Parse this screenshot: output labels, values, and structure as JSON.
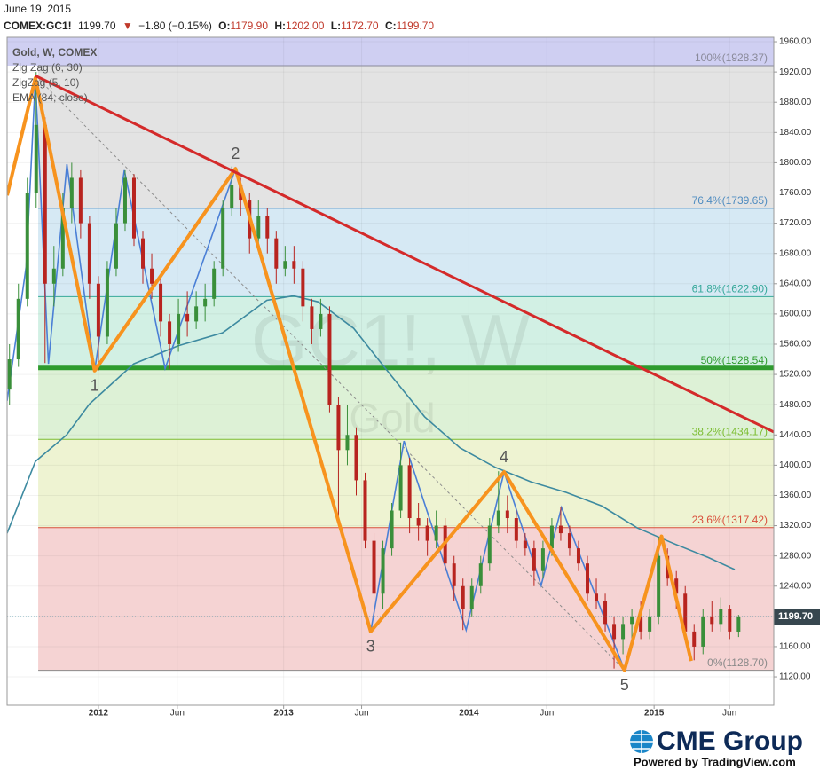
{
  "header": {
    "date": "June 19, 2015",
    "symbol": "COMEX:GC1!",
    "last": "1199.70",
    "change_arrow": "▼",
    "change": "−1.80 (−0.15%)",
    "open_label": "O:",
    "open": "1179.90",
    "high_label": "H:",
    "high": "1202.00",
    "low_label": "L:",
    "low": "1172.70",
    "close_label": "C:",
    "close": "1199.70"
  },
  "footer": {
    "brand": "CME Group",
    "powered": "Powered by TradingView.com"
  },
  "chart_data": {
    "type": "candlestick",
    "legend": [
      "Gold, W, COMEX",
      "Zig Zag (6, 30)",
      "ZigZag (5, 10)",
      "EMA (84, close)"
    ],
    "watermark": "GC1!, W",
    "watermark_sub": "Gold",
    "xlim": [
      2011.507,
      2015.646
    ],
    "ylim": [
      1082.5,
      1965.9
    ],
    "xticks": [
      {
        "value": 2012,
        "label": "2012"
      },
      {
        "value": 2012.426,
        "label": "Jun"
      },
      {
        "value": 2013,
        "label": "2013"
      },
      {
        "value": 2013.421,
        "label": "Jun"
      },
      {
        "value": 2014,
        "label": "2014"
      },
      {
        "value": 2014.421,
        "label": "Jun"
      },
      {
        "value": 2015,
        "label": "2015"
      },
      {
        "value": 2015.407,
        "label": "Jun"
      }
    ],
    "yticks": [
      {
        "value": 1120,
        "label": "1120.00"
      },
      {
        "value": 1160,
        "label": "1160.00"
      },
      {
        "value": 1200,
        "label": "1200.00"
      },
      {
        "value": 1240,
        "label": "1240.00"
      },
      {
        "value": 1280,
        "label": "1280.00"
      },
      {
        "value": 1320,
        "label": "1320.00"
      },
      {
        "value": 1360,
        "label": "1360.00"
      },
      {
        "value": 1400,
        "label": "1400.00"
      },
      {
        "value": 1440,
        "label": "1440.00"
      },
      {
        "value": 1480,
        "label": "1480.00"
      },
      {
        "value": 1520,
        "label": "1520.00"
      },
      {
        "value": 1560,
        "label": "1560.00"
      },
      {
        "value": 1600,
        "label": "1600.00"
      },
      {
        "value": 1640,
        "label": "1640.00"
      },
      {
        "value": 1680,
        "label": "1680.00"
      },
      {
        "value": 1720,
        "label": "1720.00"
      },
      {
        "value": 1760,
        "label": "1760.00"
      },
      {
        "value": 1800,
        "label": "1800.00"
      },
      {
        "value": 1840,
        "label": "1840.00"
      },
      {
        "value": 1880,
        "label": "1880.00"
      },
      {
        "value": 1920,
        "label": "1920.00"
      },
      {
        "value": 1960,
        "label": "1960.00"
      }
    ],
    "up_color": "#3a8f3a",
    "down_color": "#b8241f",
    "candles": {
      "x": [
        2011.52,
        2011.568,
        2011.616,
        2011.664,
        2011.712,
        2011.76,
        2011.808,
        2011.856,
        2011.904,
        2011.952,
        2012.0,
        2012.048,
        2012.096,
        2012.144,
        2012.192,
        2012.24,
        2012.288,
        2012.336,
        2012.384,
        2012.432,
        2012.48,
        2012.528,
        2012.576,
        2012.624,
        2012.672,
        2012.72,
        2012.768,
        2012.816,
        2012.864,
        2012.912,
        2012.96,
        2013.008,
        2013.056,
        2013.104,
        2013.152,
        2013.2,
        2013.248,
        2013.296,
        2013.344,
        2013.392,
        2013.44,
        2013.488,
        2013.536,
        2013.584,
        2013.632,
        2013.68,
        2013.728,
        2013.776,
        2013.824,
        2013.872,
        2013.92,
        2013.968,
        2014.016,
        2014.064,
        2014.112,
        2014.16,
        2014.208,
        2014.256,
        2014.304,
        2014.352,
        2014.4,
        2014.448,
        2014.496,
        2014.544,
        2014.592,
        2014.64,
        2014.688,
        2014.736,
        2014.784,
        2014.832,
        2014.88,
        2014.928,
        2014.976,
        2015.024,
        2015.072,
        2015.12,
        2015.168,
        2015.216,
        2015.264,
        2015.312,
        2015.36,
        2015.408,
        2015.456
      ],
      "open": [
        1500,
        1540,
        1620,
        1760,
        1850,
        1640,
        1660,
        1740,
        1780,
        1720,
        1640,
        1570,
        1660,
        1720,
        1780,
        1700,
        1660,
        1640,
        1590,
        1560,
        1600,
        1590,
        1610,
        1620,
        1660,
        1740,
        1770,
        1750,
        1700,
        1730,
        1700,
        1660,
        1670,
        1660,
        1610,
        1580,
        1600,
        1480,
        1420,
        1440,
        1380,
        1300,
        1230,
        1290,
        1340,
        1400,
        1330,
        1320,
        1300,
        1320,
        1270,
        1240,
        1210,
        1240,
        1270,
        1320,
        1340,
        1330,
        1300,
        1290,
        1260,
        1290,
        1320,
        1310,
        1290,
        1270,
        1230,
        1220,
        1190,
        1170,
        1190,
        1200,
        1180,
        1200,
        1280,
        1250,
        1230,
        1180,
        1160,
        1200,
        1190,
        1210,
        1179.9
      ],
      "high": [
        1560,
        1640,
        1780,
        1920,
        1860,
        1690,
        1760,
        1800,
        1790,
        1730,
        1650,
        1670,
        1740,
        1790,
        1785,
        1710,
        1680,
        1650,
        1600,
        1620,
        1630,
        1630,
        1640,
        1670,
        1750,
        1795,
        1780,
        1760,
        1750,
        1740,
        1710,
        1690,
        1690,
        1670,
        1620,
        1620,
        1610,
        1490,
        1480,
        1450,
        1390,
        1310,
        1300,
        1350,
        1430,
        1410,
        1350,
        1330,
        1340,
        1330,
        1280,
        1250,
        1250,
        1280,
        1330,
        1392,
        1360,
        1340,
        1310,
        1300,
        1300,
        1330,
        1345,
        1320,
        1300,
        1280,
        1250,
        1230,
        1200,
        1200,
        1210,
        1220,
        1210,
        1305,
        1290,
        1260,
        1240,
        1190,
        1210,
        1220,
        1225,
        1215,
        1202
      ],
      "low": [
        1480,
        1530,
        1610,
        1740,
        1535,
        1610,
        1650,
        1720,
        1700,
        1620,
        1525,
        1560,
        1650,
        1710,
        1690,
        1640,
        1620,
        1570,
        1527,
        1550,
        1570,
        1580,
        1590,
        1610,
        1650,
        1730,
        1730,
        1680,
        1690,
        1680,
        1640,
        1650,
        1640,
        1590,
        1560,
        1570,
        1470,
        1320,
        1400,
        1360,
        1290,
        1180,
        1210,
        1280,
        1330,
        1310,
        1300,
        1280,
        1290,
        1260,
        1220,
        1182,
        1200,
        1230,
        1260,
        1310,
        1310,
        1290,
        1280,
        1240,
        1250,
        1280,
        1300,
        1280,
        1260,
        1220,
        1210,
        1180,
        1131,
        1150,
        1170,
        1170,
        1170,
        1190,
        1240,
        1210,
        1170,
        1142,
        1150,
        1180,
        1180,
        1170,
        1172.7
      ],
      "close": [
        1540,
        1620,
        1760,
        1850,
        1640,
        1660,
        1740,
        1780,
        1720,
        1640,
        1570,
        1660,
        1720,
        1780,
        1700,
        1660,
        1640,
        1590,
        1560,
        1600,
        1590,
        1610,
        1620,
        1660,
        1740,
        1770,
        1750,
        1700,
        1730,
        1700,
        1660,
        1670,
        1660,
        1610,
        1580,
        1600,
        1480,
        1420,
        1440,
        1380,
        1300,
        1230,
        1290,
        1340,
        1400,
        1330,
        1320,
        1300,
        1320,
        1270,
        1240,
        1210,
        1240,
        1270,
        1320,
        1340,
        1330,
        1300,
        1290,
        1260,
        1290,
        1320,
        1310,
        1290,
        1270,
        1230,
        1220,
        1190,
        1170,
        1190,
        1200,
        1180,
        1200,
        1280,
        1250,
        1230,
        1180,
        1160,
        1200,
        1190,
        1210,
        1180,
        1199.7
      ]
    },
    "last_price": {
      "value": 1199.7,
      "label": "1199.70"
    },
    "fib_start": 2011.675,
    "fib_levels": [
      {
        "value": 1928.37,
        "label": "100%(1928.37)",
        "color": "#8a8a9a",
        "fill": "#cfcff2"
      },
      {
        "value": 1739.65,
        "label": "76.4%(1739.65)",
        "color": "#4f8cc0",
        "fill": "#e3e3e3"
      },
      {
        "value": 1622.9,
        "label": "61.8%(1622.90)",
        "color": "#36a89a",
        "fill": "#d6e9f4"
      },
      {
        "value": 1528.54,
        "label": "50%(1528.54)",
        "color": "#2e9b2e",
        "fill": "#d2f0e4"
      },
      {
        "value": 1434.17,
        "label": "38.2%(1434.17)",
        "color": "#7cbd32",
        "fill": "#ddf1d6"
      },
      {
        "value": 1317.42,
        "label": "23.6%(1317.42)",
        "color": "#d9503c",
        "fill": "#eef3d2"
      },
      {
        "value": 1128.7,
        "label": "0%(1128.70)",
        "color": "#8a8a8a",
        "fill": "#f5d3d3"
      }
    ],
    "ema": {
      "color": "#3d8aa0",
      "x": [
        2011.507,
        2011.66,
        2011.828,
        2011.952,
        2012.191,
        2012.431,
        2012.67,
        2012.909,
        2013.053,
        2013.187,
        2013.378,
        2013.569,
        2013.761,
        2013.952,
        2014.144,
        2014.335,
        2014.526,
        2014.718,
        2014.909,
        2015.1,
        2015.292,
        2015.435
      ],
      "values": [
        1310,
        1405,
        1440,
        1481,
        1534,
        1558,
        1575,
        1618,
        1624,
        1616,
        1581,
        1522,
        1464,
        1423,
        1397,
        1378,
        1364,
        1346,
        1317,
        1297,
        1278,
        1262
      ]
    },
    "zigzag_major": {
      "color": "#f7931e",
      "x": [
        2011.507,
        2011.66,
        2011.98,
        2012.74,
        2013.47,
        2014.19,
        2014.84,
        2015.04,
        2015.2
      ],
      "values": [
        1757,
        1912,
        1525,
        1792,
        1180,
        1391,
        1129,
        1306,
        1141
      ],
      "labels": [
        null,
        null,
        "1",
        "2",
        "3",
        "4",
        "5",
        null,
        null
      ]
    },
    "zigzag_minor": {
      "color": "#4a7fd6",
      "x": [
        2011.507,
        2011.61,
        2011.66,
        2011.73,
        2011.83,
        2011.98,
        2012.14,
        2012.36,
        2012.74,
        2013.47,
        2013.65,
        2013.985,
        2014.19,
        2014.39,
        2014.5,
        2014.84,
        2015.04,
        2015.2
      ],
      "values": [
        1485,
        1663,
        1912,
        1534,
        1798,
        1525,
        1790,
        1528,
        1792,
        1180,
        1432,
        1182,
        1391,
        1241,
        1344,
        1129,
        1306,
        1141
      ]
    },
    "trendline": {
      "color": "#d42a2a",
      "x": [
        2011.66,
        2015.646
      ],
      "values": [
        1915,
        1444
      ]
    },
    "guide_line": {
      "color": "#8c8c8c",
      "x": [
        2011.66,
        2014.84
      ],
      "values": [
        1915,
        1129
      ]
    }
  }
}
